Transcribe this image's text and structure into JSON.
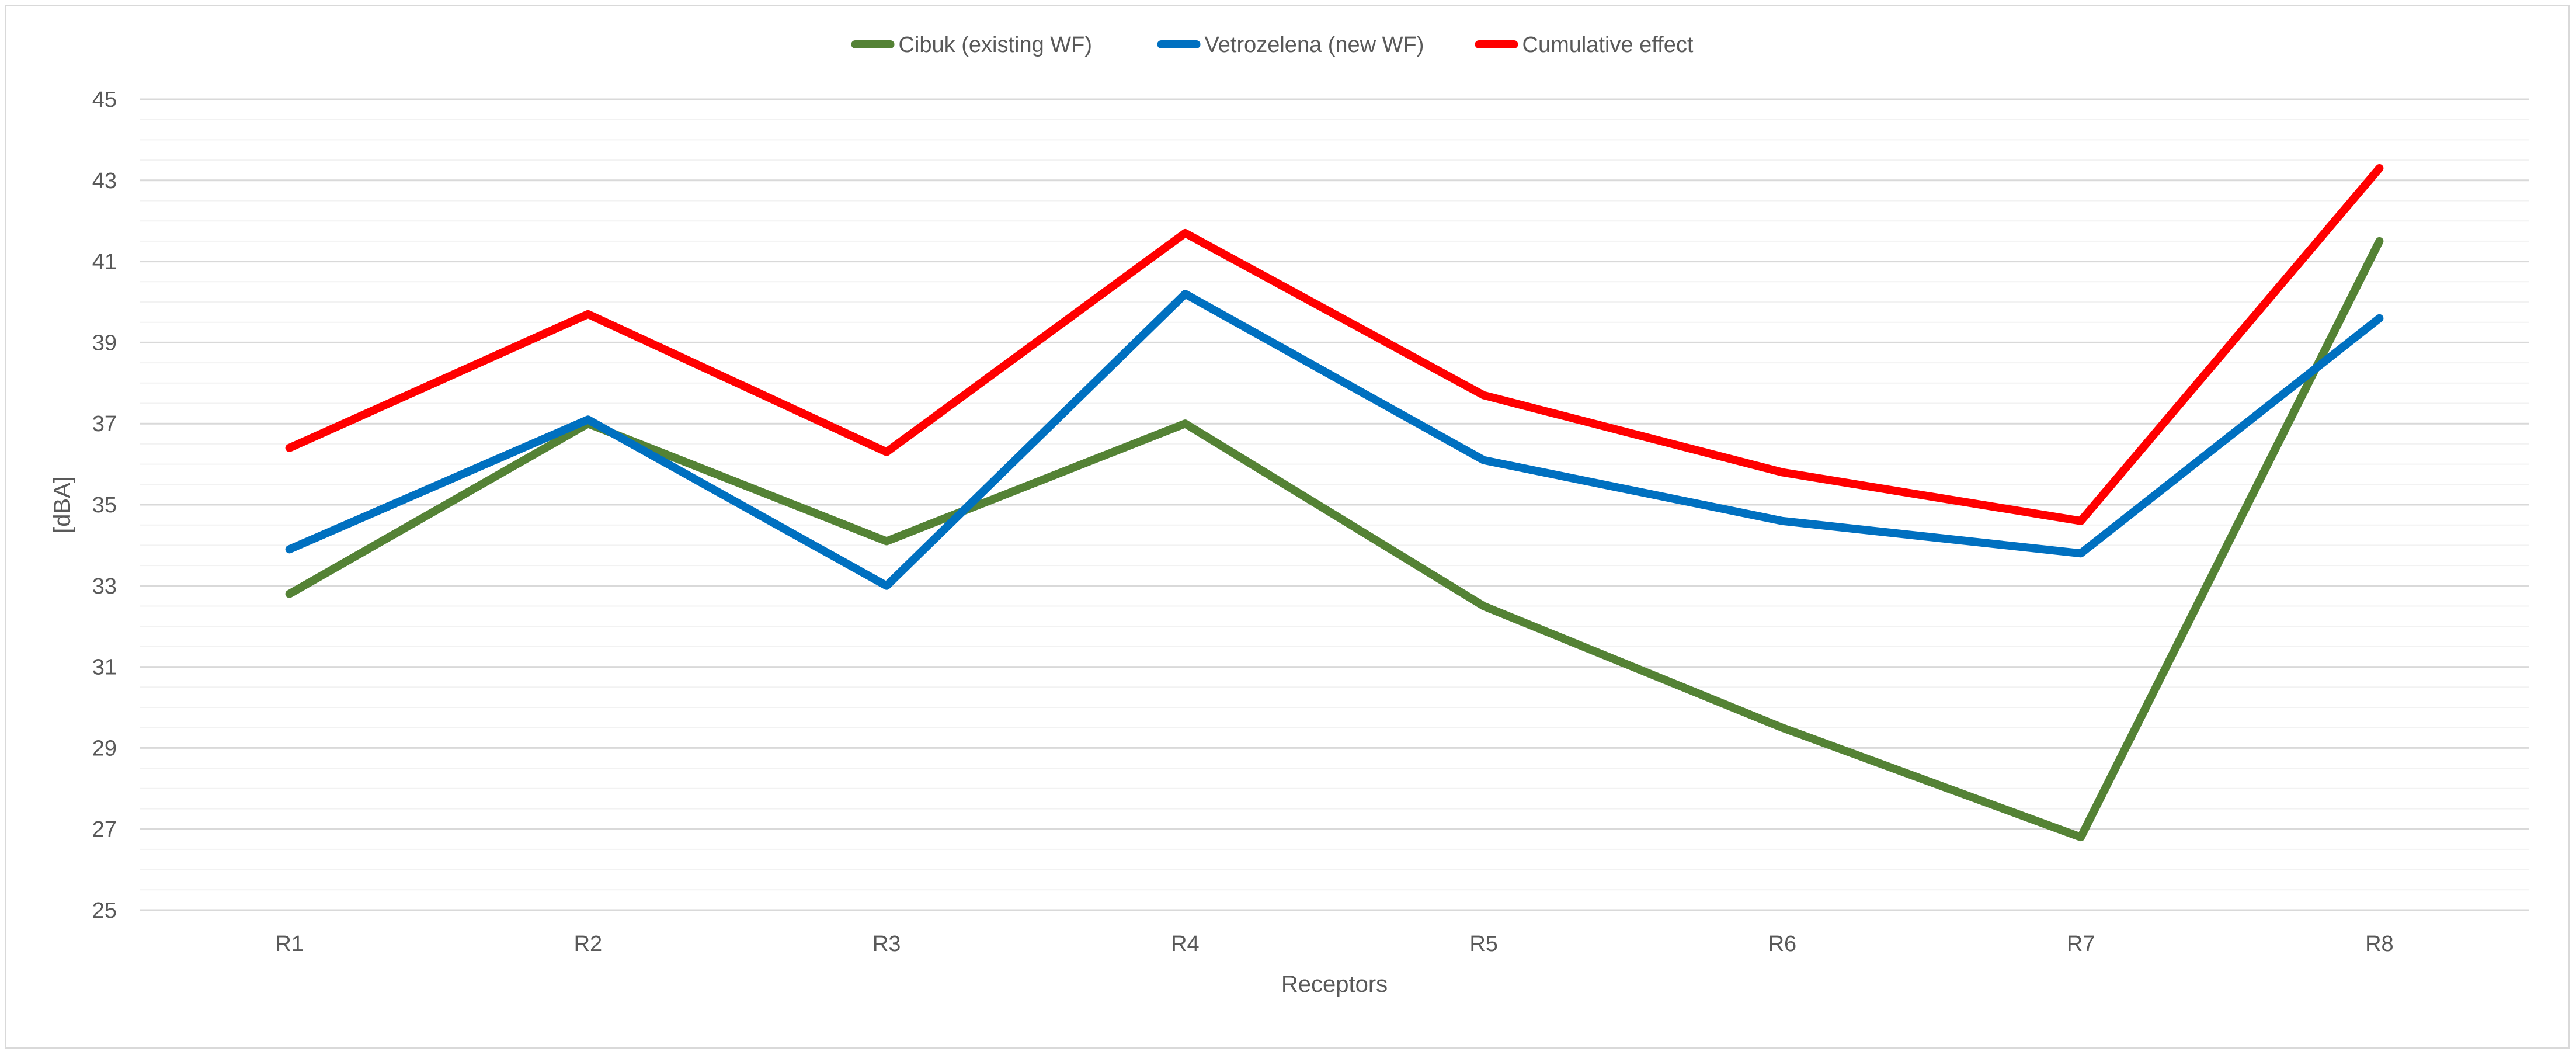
{
  "chart_data": {
    "type": "line",
    "title": "",
    "xlabel": "Receptors",
    "ylabel": "[dBA]",
    "categories": [
      "R1",
      "R2",
      "R3",
      "R4",
      "R5",
      "R6",
      "R7",
      "R8"
    ],
    "ylim": [
      25,
      45
    ],
    "yticks": [
      25,
      27,
      29,
      31,
      33,
      35,
      37,
      39,
      41,
      43,
      45
    ],
    "minor_grid": true,
    "legend_position": "top-center",
    "series": [
      {
        "name": "Cibuk (existing WF)",
        "color": "#548235",
        "values": [
          32.8,
          37.0,
          34.1,
          37.0,
          32.5,
          29.5,
          26.8,
          41.5
        ]
      },
      {
        "name": "Vetrozelena (new WF)",
        "color": "#0070c0",
        "values": [
          33.9,
          37.1,
          33.0,
          40.2,
          36.1,
          34.6,
          33.8,
          39.6
        ]
      },
      {
        "name": "Cumulative effect",
        "color": "#ff0000",
        "values": [
          36.4,
          39.7,
          36.3,
          41.7,
          37.7,
          35.8,
          34.6,
          43.3
        ]
      }
    ]
  }
}
